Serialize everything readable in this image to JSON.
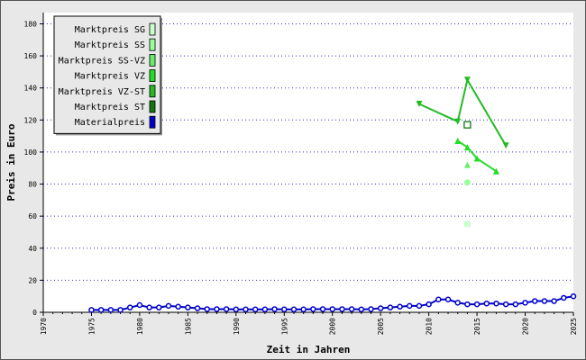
{
  "chart_data": {
    "type": "line",
    "xlabel": "Zeit in Jahren",
    "ylabel": "Preis in Euro",
    "xlim": [
      1970,
      2025
    ],
    "ylim": [
      0,
      187
    ],
    "xticks": [
      1970,
      1975,
      1980,
      1985,
      1990,
      1995,
      2000,
      2005,
      2010,
      2015,
      2020,
      2025
    ],
    "yticks": [
      0,
      20,
      40,
      60,
      80,
      100,
      120,
      140,
      160,
      180
    ],
    "grid": "horizontal-dotted",
    "legend_position": "top-left",
    "series": [
      {
        "name": "Marktpreis SG",
        "color": "#ccffcc",
        "marker": "square",
        "points": [
          [
            2014,
            55
          ]
        ]
      },
      {
        "name": "Marktpreis SS",
        "color": "#99ff99",
        "marker": "circle",
        "points": [
          [
            2014,
            81
          ]
        ]
      },
      {
        "name": "Marktpreis SS-VZ",
        "color": "#66ee66",
        "marker": "triangle-up",
        "points": [
          [
            2014,
            92
          ]
        ]
      },
      {
        "name": "Marktpreis VZ",
        "color": "#22dd22",
        "marker": "triangle-up",
        "points": [
          [
            2013,
            107
          ],
          [
            2014,
            103
          ],
          [
            2015,
            96
          ],
          [
            2017,
            88
          ]
        ]
      },
      {
        "name": "Marktpreis VZ-ST",
        "color": "#22bb22",
        "marker": "triangle-down",
        "points": [
          [
            2009,
            130
          ],
          [
            2013,
            119
          ],
          [
            2014,
            145
          ],
          [
            2018,
            104
          ]
        ]
      },
      {
        "name": "Marktpreis ST",
        "color": "#117711",
        "marker": "square-open",
        "points": [
          [
            2014,
            117
          ]
        ]
      },
      {
        "name": "Materialpreis",
        "color": "#0000cc",
        "marker": "circle-open",
        "points": [
          [
            1975,
            1.5
          ],
          [
            1976,
            1.5
          ],
          [
            1977,
            1.5
          ],
          [
            1978,
            1.5
          ],
          [
            1979,
            3
          ],
          [
            1980,
            4.5
          ],
          [
            1981,
            3
          ],
          [
            1982,
            3
          ],
          [
            1983,
            4
          ],
          [
            1984,
            3.5
          ],
          [
            1985,
            3
          ],
          [
            1986,
            2.5
          ],
          [
            1987,
            2
          ],
          [
            1988,
            2
          ],
          [
            1989,
            2
          ],
          [
            1990,
            1.8
          ],
          [
            1991,
            1.8
          ],
          [
            1992,
            1.8
          ],
          [
            1993,
            1.8
          ],
          [
            1994,
            2
          ],
          [
            1995,
            1.8
          ],
          [
            1996,
            1.8
          ],
          [
            1997,
            1.8
          ],
          [
            1998,
            2
          ],
          [
            1999,
            2
          ],
          [
            2000,
            2
          ],
          [
            2001,
            2
          ],
          [
            2002,
            2
          ],
          [
            2003,
            1.8
          ],
          [
            2004,
            2
          ],
          [
            2005,
            2.5
          ],
          [
            2006,
            3
          ],
          [
            2007,
            3.5
          ],
          [
            2008,
            4
          ],
          [
            2009,
            4
          ],
          [
            2010,
            5
          ],
          [
            2011,
            8
          ],
          [
            2012,
            8
          ],
          [
            2013,
            6
          ],
          [
            2014,
            5
          ],
          [
            2015,
            5
          ],
          [
            2016,
            5.5
          ],
          [
            2017,
            5.5
          ],
          [
            2018,
            5
          ],
          [
            2019,
            5
          ],
          [
            2020,
            6
          ],
          [
            2021,
            7
          ],
          [
            2022,
            7
          ],
          [
            2023,
            7
          ],
          [
            2024,
            9
          ],
          [
            2025,
            10
          ]
        ]
      }
    ]
  }
}
